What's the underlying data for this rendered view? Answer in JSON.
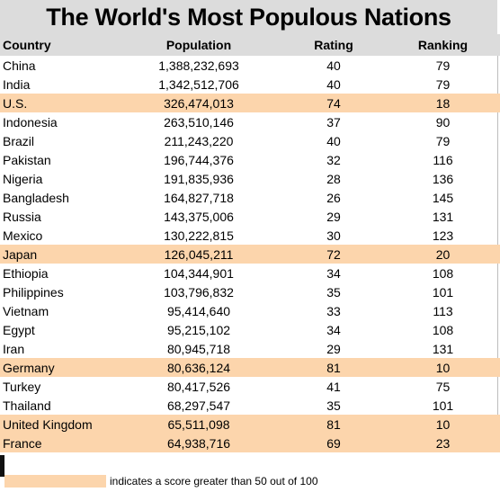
{
  "chart_data": {
    "type": "table",
    "title": "The World's Most Populous Nations",
    "columns": [
      "Country",
      "Population",
      "Rating",
      "Ranking"
    ],
    "rows": [
      {
        "country": "China",
        "population": "1,388,232,693",
        "rating": 40,
        "ranking": 79,
        "highlight": false
      },
      {
        "country": "India",
        "population": "1,342,512,706",
        "rating": 40,
        "ranking": 79,
        "highlight": false
      },
      {
        "country": "U.S.",
        "population": "326,474,013",
        "rating": 74,
        "ranking": 18,
        "highlight": true
      },
      {
        "country": "Indonesia",
        "population": "263,510,146",
        "rating": 37,
        "ranking": 90,
        "highlight": false
      },
      {
        "country": "Brazil",
        "population": "211,243,220",
        "rating": 40,
        "ranking": 79,
        "highlight": false
      },
      {
        "country": "Pakistan",
        "population": "196,744,376",
        "rating": 32,
        "ranking": 116,
        "highlight": false
      },
      {
        "country": "Nigeria",
        "population": "191,835,936",
        "rating": 28,
        "ranking": 136,
        "highlight": false
      },
      {
        "country": "Bangladesh",
        "population": "164,827,718",
        "rating": 26,
        "ranking": 145,
        "highlight": false
      },
      {
        "country": "Russia",
        "population": "143,375,006",
        "rating": 29,
        "ranking": 131,
        "highlight": false
      },
      {
        "country": "Mexico",
        "population": "130,222,815",
        "rating": 30,
        "ranking": 123,
        "highlight": false
      },
      {
        "country": "Japan",
        "population": "126,045,211",
        "rating": 72,
        "ranking": 20,
        "highlight": true
      },
      {
        "country": "Ethiopia",
        "population": "104,344,901",
        "rating": 34,
        "ranking": 108,
        "highlight": false
      },
      {
        "country": "Philippines",
        "population": "103,796,832",
        "rating": 35,
        "ranking": 101,
        "highlight": false
      },
      {
        "country": "Vietnam",
        "population": "95,414,640",
        "rating": 33,
        "ranking": 113,
        "highlight": false
      },
      {
        "country": "Egypt",
        "population": "95,215,102",
        "rating": 34,
        "ranking": 108,
        "highlight": false
      },
      {
        "country": "Iran",
        "population": "80,945,718",
        "rating": 29,
        "ranking": 131,
        "highlight": false
      },
      {
        "country": "Germany",
        "population": "80,636,124",
        "rating": 81,
        "ranking": 10,
        "highlight": true
      },
      {
        "country": "Turkey",
        "population": "80,417,526",
        "rating": 41,
        "ranking": 75,
        "highlight": false
      },
      {
        "country": "Thailand",
        "population": "68,297,547",
        "rating": 35,
        "ranking": 101,
        "highlight": false
      },
      {
        "country": "United Kingdom",
        "population": "65,511,098",
        "rating": 81,
        "ranking": 10,
        "highlight": true
      },
      {
        "country": "France",
        "population": "64,938,716",
        "rating": 69,
        "ranking": 23,
        "highlight": true
      }
    ],
    "legend": "indicates a score greater than 50 out of 100",
    "highlight_color": "#fcd5ac",
    "header_color": "#dcdcdc"
  }
}
